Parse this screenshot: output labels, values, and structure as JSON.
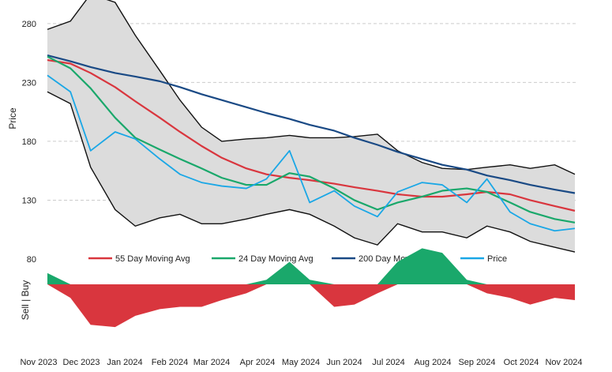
{
  "chart_data": {
    "type": "line",
    "ylabel": "Price",
    "sub_ylabel": "Sell | Buy",
    "ylim": [
      80,
      300
    ],
    "yticks": [
      80,
      130,
      180,
      230,
      280
    ],
    "grid": "horizontal-dashed",
    "legend_placement": "bottom-inside",
    "x": [
      "2023-11-15",
      "2023-12-01",
      "2023-12-15",
      "2024-01-01",
      "2024-01-15",
      "2024-02-01",
      "2024-02-15",
      "2024-03-01",
      "2024-03-15",
      "2024-04-01",
      "2024-04-15",
      "2024-05-01",
      "2024-05-15",
      "2024-06-01",
      "2024-06-15",
      "2024-07-01",
      "2024-07-15",
      "2024-08-01",
      "2024-08-15",
      "2024-09-01",
      "2024-09-15",
      "2024-10-01",
      "2024-10-15",
      "2024-11-01",
      "2024-11-15"
    ],
    "x_tick_labels": [
      "Nov 2023",
      "Dec 2023",
      "Jan 2024",
      "Feb 2024",
      "Mar 2024",
      "Apr 2024",
      "May 2024",
      "Jun 2024",
      "Jul 2024",
      "Aug 2024",
      "Sep 2024",
      "Oct 2024",
      "Nov 2024"
    ],
    "series": [
      {
        "name": "55 Day Moving Avg",
        "color": "#d9363e",
        "values": [
          249,
          246,
          238,
          226,
          214,
          200,
          188,
          176,
          166,
          157,
          152,
          149,
          147,
          144,
          141,
          138,
          135,
          133,
          133,
          135,
          137,
          135,
          130,
          125,
          121
        ]
      },
      {
        "name": "24 Day Moving Avg",
        "color": "#1aa86b",
        "values": [
          252,
          242,
          225,
          200,
          183,
          173,
          165,
          157,
          149,
          143,
          143,
          153,
          150,
          140,
          130,
          122,
          128,
          133,
          138,
          140,
          137,
          128,
          120,
          114,
          111
        ]
      },
      {
        "name": "200 Day Moving Avg",
        "color": "#1a4a85",
        "values": [
          253,
          248,
          243,
          238,
          235,
          231,
          226,
          220,
          215,
          209,
          204,
          199,
          194,
          189,
          183,
          177,
          171,
          165,
          160,
          156,
          151,
          147,
          143,
          139,
          136
        ]
      },
      {
        "name": "Price",
        "color": "#1aa7e6",
        "values": [
          236,
          222,
          172,
          188,
          182,
          165,
          152,
          145,
          142,
          140,
          148,
          172,
          128,
          138,
          125,
          116,
          137,
          145,
          143,
          128,
          148,
          120,
          110,
          104,
          106
        ]
      }
    ],
    "band_upper": [
      275,
      282,
      305,
      298,
      270,
      240,
      215,
      192,
      180,
      182,
      183,
      185,
      183,
      183,
      184,
      186,
      172,
      162,
      157,
      156,
      158,
      160,
      157,
      160,
      152
    ],
    "band_lower": [
      222,
      212,
      158,
      122,
      108,
      115,
      118,
      110,
      110,
      114,
      118,
      122,
      118,
      108,
      98,
      92,
      110,
      103,
      103,
      98,
      108,
      103,
      95,
      90,
      86
    ],
    "signal": [
      0.25,
      -0.3,
      -0.9,
      -0.95,
      -0.7,
      -0.55,
      -0.5,
      -0.5,
      -0.35,
      -0.2,
      0.1,
      0.5,
      0.1,
      -0.5,
      -0.45,
      -0.2,
      0.5,
      0.8,
      0.7,
      0.1,
      -0.2,
      -0.3,
      -0.45,
      -0.3,
      -0.35
    ],
    "colors": {
      "band_fill": "#dcdcdc",
      "band_line": "#111111",
      "sell": "#d9363e",
      "buy": "#1aa86b",
      "grid": "#cccccc"
    }
  }
}
